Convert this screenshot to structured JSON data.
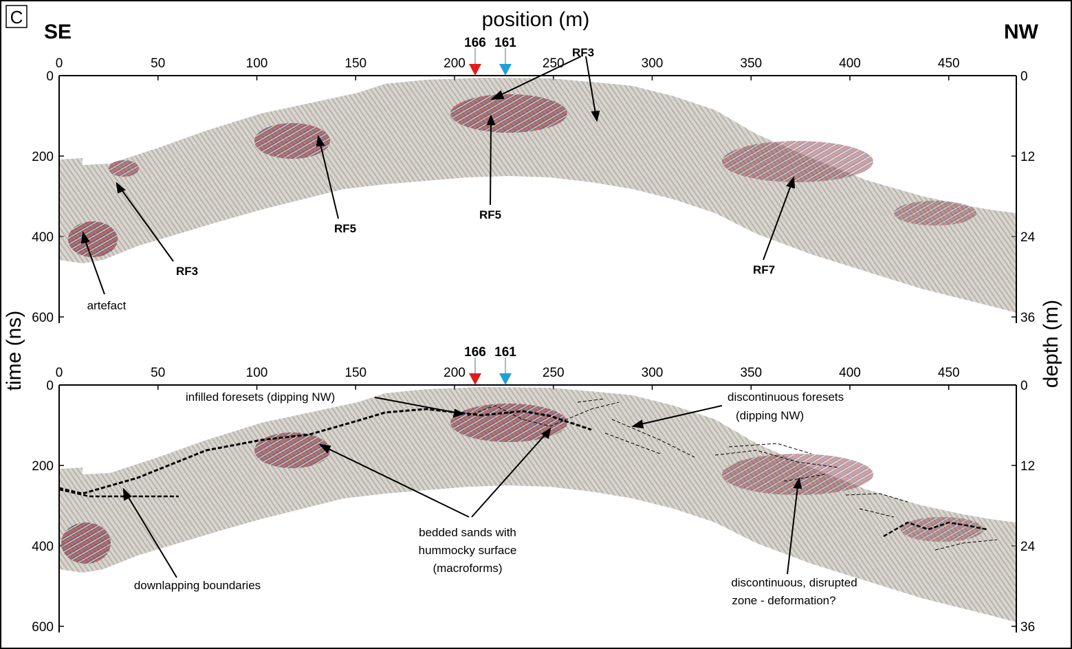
{
  "panel_letter": "C",
  "x_axis_title": "position (m)",
  "y_axis_left_title": "time (ns)",
  "y_axis_right_title": "depth (m)",
  "direction_left": "SE",
  "direction_right": "NW",
  "x_ticks": [
    "0",
    "50",
    "100",
    "150",
    "200",
    "250",
    "300",
    "350",
    "400",
    "450"
  ],
  "time_ticks": [
    "0",
    "200",
    "400",
    "600"
  ],
  "depth_ticks": [
    "0",
    "12",
    "24",
    "36"
  ],
  "markers": [
    {
      "label": "166",
      "color": "#e21b1b"
    },
    {
      "label": "161",
      "color": "#1e9fd8"
    }
  ],
  "top_panel_labels": {
    "rf3_top": "RF3",
    "rf3_left": "RF3",
    "rf5_a": "RF5",
    "rf5_b": "RF5",
    "rf7": "RF7",
    "artefact": "artefact"
  },
  "bottom_panel_labels": {
    "infilled_foresets": "infilled foresets (dipping NW)",
    "discontinuous_foresets_line1": "discontinuous foresets",
    "discontinuous_foresets_line2": "(dipping NW)",
    "bedded_sands_line1": "bedded sands with",
    "bedded_sands_line2": "hummocky surface",
    "bedded_sands_line3": "(macroforms)",
    "downlapping": "downlapping boundaries",
    "disrupted_line1": "discontinuous, disrupted",
    "disrupted_line2": "zone - deformation?"
  }
}
